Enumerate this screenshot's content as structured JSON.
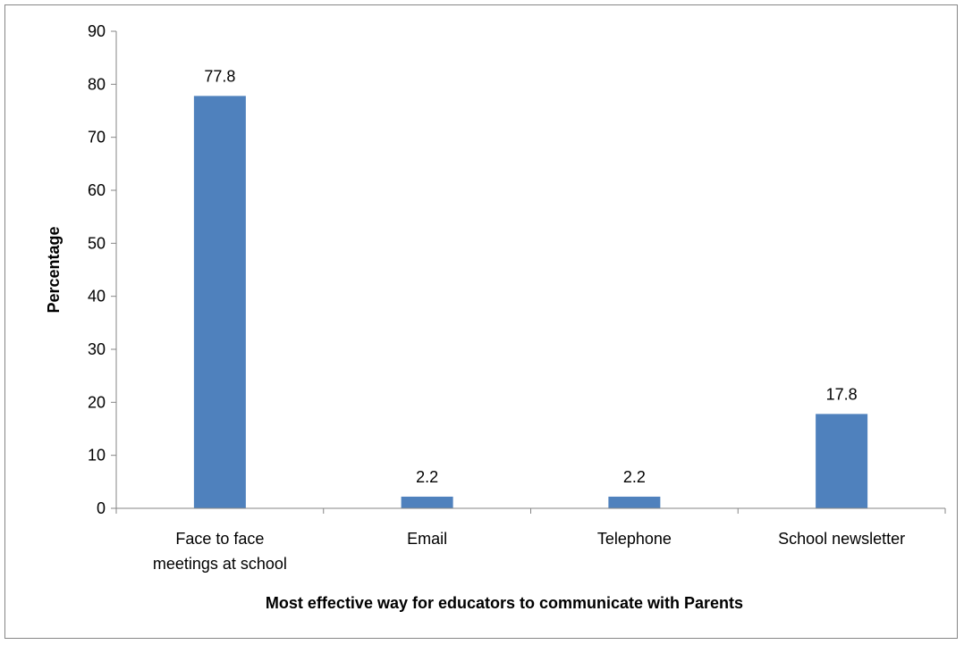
{
  "chart_data": {
    "type": "bar",
    "categories": [
      [
        "Face to face",
        "meetings at school"
      ],
      [
        "Email"
      ],
      [
        "Telephone"
      ],
      [
        "School newsletter"
      ]
    ],
    "values": [
      77.8,
      2.2,
      2.2,
      17.8
    ],
    "data_labels": [
      "77.8",
      "2.2",
      "2.2",
      "17.8"
    ],
    "title": "",
    "xlabel": "Most effective way for educators to communicate with Parents",
    "ylabel": "Percentage",
    "ylim": [
      0,
      90
    ],
    "yticks": [
      0,
      10,
      20,
      30,
      40,
      50,
      60,
      70,
      80,
      90
    ],
    "grid": false,
    "legend": "none",
    "bar_color": "#4F81BD"
  }
}
